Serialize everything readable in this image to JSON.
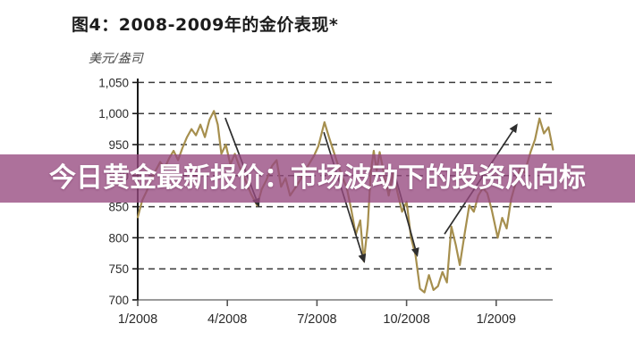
{
  "figure": {
    "title": "图4：2008-2009年的金价表现*",
    "unit_label": "美元/盎司"
  },
  "overlay_banner": {
    "text": "今日黄金最新报价：市场波动下的投资风向标",
    "bg_color": "#96497f",
    "bg_opacity": 0.78,
    "text_color": "#ffffff"
  },
  "chart_data": {
    "type": "line",
    "title": "图4：2008-2009年的金价表现*",
    "ylabel": "美元/盎司",
    "xlabel": "",
    "ylim": [
      700,
      1050
    ],
    "grid": "horizontal-dashed",
    "grid_color": "#3c3c3c",
    "axis_color": "#1a1a1a",
    "xaxis_line_color": "#9a9a9a",
    "tick_label_color": "#2a2a2a",
    "arrow_color": "#2e2e2e",
    "yticks": [
      {
        "value": 1050,
        "label": "1,050"
      },
      {
        "value": 1000,
        "label": "1,000"
      },
      {
        "value": 950,
        "label": "950"
      },
      {
        "value": 900,
        "label": "900"
      },
      {
        "value": 850,
        "label": "850"
      },
      {
        "value": 800,
        "label": "800"
      },
      {
        "value": 750,
        "label": "750"
      },
      {
        "value": 700,
        "label": "700"
      }
    ],
    "xticks": [
      {
        "m": 0,
        "label": "1/2008"
      },
      {
        "m": 3,
        "label": "4/2008"
      },
      {
        "m": 6,
        "label": "7/2008"
      },
      {
        "m": 9,
        "label": "10/2008"
      },
      {
        "m": 12,
        "label": "1/2009"
      }
    ],
    "series": [
      {
        "name": "gold-price-usd-per-oz",
        "color": "#a68f4e",
        "points": [
          [
            0.0,
            833
          ],
          [
            0.15,
            860
          ],
          [
            0.3,
            875
          ],
          [
            0.45,
            893
          ],
          [
            0.6,
            908
          ],
          [
            0.75,
            922
          ],
          [
            0.9,
            912
          ],
          [
            1.05,
            928
          ],
          [
            1.2,
            940
          ],
          [
            1.35,
            925
          ],
          [
            1.5,
            945
          ],
          [
            1.65,
            962
          ],
          [
            1.8,
            975
          ],
          [
            1.95,
            965
          ],
          [
            2.1,
            982
          ],
          [
            2.25,
            962
          ],
          [
            2.4,
            990
          ],
          [
            2.55,
            1004
          ],
          [
            2.68,
            982
          ],
          [
            2.8,
            935
          ],
          [
            2.95,
            950
          ],
          [
            3.1,
            918
          ],
          [
            3.25,
            935
          ],
          [
            3.4,
            915
          ],
          [
            3.6,
            893
          ],
          [
            3.8,
            870
          ],
          [
            4.0,
            852
          ],
          [
            4.15,
            878
          ],
          [
            4.3,
            892
          ],
          [
            4.5,
            916
          ],
          [
            4.65,
            925
          ],
          [
            4.8,
            882
          ],
          [
            4.95,
            896
          ],
          [
            5.1,
            868
          ],
          [
            5.3,
            882
          ],
          [
            5.5,
            898
          ],
          [
            5.7,
            916
          ],
          [
            5.9,
            932
          ],
          [
            6.05,
            948
          ],
          [
            6.25,
            986
          ],
          [
            6.4,
            962
          ],
          [
            6.55,
            940
          ],
          [
            6.7,
            918
          ],
          [
            6.85,
            898
          ],
          [
            7.0,
            880
          ],
          [
            7.15,
            845
          ],
          [
            7.3,
            805
          ],
          [
            7.45,
            828
          ],
          [
            7.57,
            762
          ],
          [
            7.7,
            820
          ],
          [
            7.8,
            905
          ],
          [
            7.9,
            940
          ],
          [
            8.0,
            908
          ],
          [
            8.1,
            938
          ],
          [
            8.25,
            902
          ],
          [
            8.4,
            868
          ],
          [
            8.55,
            905
          ],
          [
            8.7,
            872
          ],
          [
            8.85,
            842
          ],
          [
            9.0,
            858
          ],
          [
            9.15,
            800
          ],
          [
            9.3,
            772
          ],
          [
            9.45,
            718
          ],
          [
            9.6,
            712
          ],
          [
            9.75,
            740
          ],
          [
            9.9,
            716
          ],
          [
            10.05,
            722
          ],
          [
            10.2,
            745
          ],
          [
            10.35,
            728
          ],
          [
            10.5,
            818
          ],
          [
            10.65,
            788
          ],
          [
            10.78,
            756
          ],
          [
            10.95,
            808
          ],
          [
            11.1,
            852
          ],
          [
            11.25,
            842
          ],
          [
            11.4,
            868
          ],
          [
            11.55,
            880
          ],
          [
            11.7,
            872
          ],
          [
            11.85,
            845
          ],
          [
            12.05,
            800
          ],
          [
            12.2,
            832
          ],
          [
            12.35,
            815
          ],
          [
            12.5,
            862
          ],
          [
            12.65,
            888
          ],
          [
            12.8,
            912
          ],
          [
            12.95,
            905
          ],
          [
            13.15,
            938
          ],
          [
            13.3,
            958
          ],
          [
            13.45,
            992
          ],
          [
            13.6,
            968
          ],
          [
            13.75,
            978
          ],
          [
            13.9,
            942
          ]
        ]
      }
    ],
    "annotations": [
      {
        "type": "arrow",
        "direction": "down",
        "from": [
          2.93,
          993
        ],
        "to": [
          4.07,
          849
        ]
      },
      {
        "type": "arrow",
        "direction": "down",
        "from": [
          6.23,
          970
        ],
        "to": [
          7.6,
          759
        ]
      },
      {
        "type": "arrow",
        "direction": "down",
        "from": [
          8.56,
          910
        ],
        "to": [
          9.37,
          769
        ]
      },
      {
        "type": "arrow",
        "direction": "up",
        "from": [
          10.27,
          806
        ],
        "to": [
          12.72,
          984
        ]
      }
    ]
  }
}
